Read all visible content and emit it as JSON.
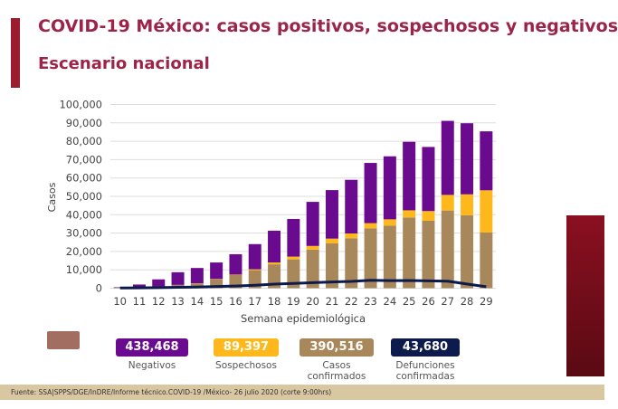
{
  "title": "COVID-19 México: casos positivos, sospechosos y negativos",
  "subtitle": "Escenario nacional",
  "colors": {
    "negativos": "#6a0a8e",
    "sospechosos": "#ffb81c",
    "confirmados": "#a8885a",
    "defunciones": "#0d1b4c",
    "title": "#9d2449"
  },
  "chart_data": {
    "type": "bar",
    "stacked": true,
    "xlabel": "Semana epidemiológica",
    "ylabel": "Casos",
    "ylim": [
      0,
      100000
    ],
    "yticks": [
      "0",
      "10,000",
      "20,000",
      "30,000",
      "40,000",
      "50,000",
      "60,000",
      "70,000",
      "80,000",
      "90,000",
      "100,000"
    ],
    "categories": [
      "10",
      "11",
      "12",
      "13",
      "14",
      "15",
      "16",
      "17",
      "18",
      "19",
      "20",
      "21",
      "22",
      "23",
      "24",
      "25",
      "26",
      "27",
      "28",
      "29"
    ],
    "grid": true,
    "series": [
      {
        "name": "Casos confirmados",
        "values": [
          200,
          500,
          1000,
          1800,
          2600,
          5000,
          7200,
          9800,
          13000,
          15700,
          21000,
          24400,
          27200,
          32600,
          34100,
          38500,
          36700,
          42300,
          39700,
          30300
        ]
      },
      {
        "name": "Sospechosos",
        "values": [
          0,
          0,
          0,
          0,
          100,
          100,
          200,
          500,
          1000,
          1500,
          2000,
          2600,
          2600,
          2800,
          3400,
          3900,
          5300,
          8500,
          11400,
          23000
        ]
      },
      {
        "name": "Negativos",
        "values": [
          300,
          1500,
          3800,
          6900,
          8300,
          8900,
          11100,
          13700,
          17300,
          20500,
          24000,
          26400,
          29200,
          32800,
          34300,
          37300,
          34900,
          40300,
          38700,
          32100
        ]
      }
    ],
    "line": {
      "name": "Defunciones confirmadas",
      "values": [
        100,
        200,
        300,
        500,
        600,
        900,
        1200,
        1600,
        2200,
        2600,
        3000,
        3400,
        3700,
        4300,
        4100,
        4200,
        4000,
        3800,
        2300,
        800
      ]
    }
  },
  "summary": [
    {
      "value": "438,468",
      "label": "Negativos"
    },
    {
      "value": "89,397",
      "label": "Sospechosos"
    },
    {
      "value": "390,516",
      "label": "Casos confirmados"
    },
    {
      "value": "43,680",
      "label": "Defunciones confirmadas"
    }
  ],
  "footer": "Fuente: SSA|SPPS/DGE/InDRE/Informe técnico.COVID-19 /México- 26 julio 2020 (corte 9:00hrs)"
}
